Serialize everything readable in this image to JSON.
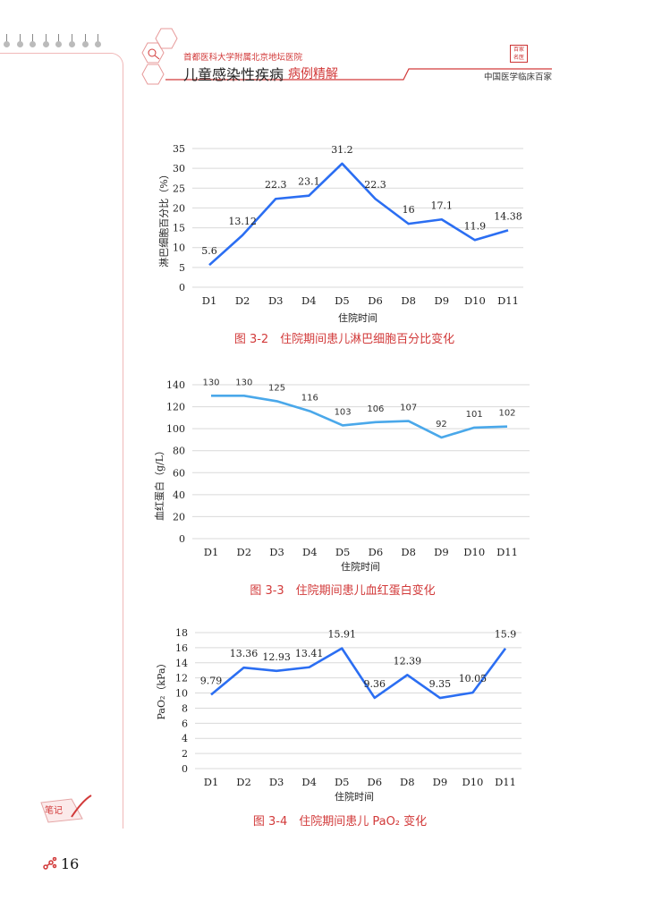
{
  "header": {
    "hospital": "首都医科大学附属北京地坛医院",
    "book_title": "儿童感染性疾病",
    "book_subtitle": "病例精解",
    "series": "中国医学临床百家",
    "seal_text": "百家名医",
    "notes_icon_text": "笔记"
  },
  "footer": {
    "page_number": "16"
  },
  "colors": {
    "accent": "#d23a3a",
    "line_dark": "#2b6ef2",
    "line_light": "#4aa8ea",
    "grid": "#d9d9d9"
  },
  "chart_data": [
    {
      "type": "line",
      "title": "图 3-2　住院期间患儿淋巴细胞百分比变化",
      "xlabel": "住院时间",
      "ylabel": "淋巴细胞百分比（%）",
      "categories": [
        "D1",
        "D2",
        "D3",
        "D4",
        "D5",
        "D6",
        "D8",
        "D9",
        "D10",
        "D11"
      ],
      "values": [
        5.6,
        13.12,
        22.3,
        23.1,
        31.2,
        22.3,
        16,
        17.1,
        11.9,
        14.38
      ],
      "labels": [
        "5.6",
        "13.12",
        "22.3",
        "23.1",
        "31.2",
        "22.3",
        "16",
        "17.1",
        "11.9",
        "14.38"
      ],
      "ylim": [
        0,
        35
      ],
      "yticks": [
        0,
        5,
        10,
        15,
        20,
        25,
        30,
        35
      ],
      "grid": true
    },
    {
      "type": "line",
      "title": "图 3-3　住院期间患儿血红蛋白变化",
      "xlabel": "住院时间",
      "ylabel": "血红蛋白（g/L）",
      "categories": [
        "D1",
        "D2",
        "D3",
        "D4",
        "D5",
        "D6",
        "D8",
        "D9",
        "D10",
        "D11"
      ],
      "values": [
        130,
        130,
        125,
        116,
        103,
        106,
        107,
        92,
        101,
        102
      ],
      "labels": [
        "130",
        "130",
        "125",
        "116",
        "103",
        "106",
        "107",
        "92",
        "101",
        "102"
      ],
      "ylim": [
        0,
        140
      ],
      "yticks": [
        0,
        20,
        40,
        60,
        80,
        100,
        120,
        140
      ],
      "grid": true
    },
    {
      "type": "line",
      "title": "图 3-4　住院期间患儿 PaO₂ 变化",
      "xlabel": "住院时间",
      "ylabel": "PaO₂（kPa）",
      "categories": [
        "D1",
        "D2",
        "D3",
        "D4",
        "D5",
        "D6",
        "D8",
        "D9",
        "D10",
        "D11"
      ],
      "values": [
        9.79,
        13.36,
        12.93,
        13.41,
        15.91,
        9.36,
        12.39,
        9.35,
        10.05,
        15.9
      ],
      "labels": [
        "9.79",
        "13.36",
        "12.93",
        "13.41",
        "15.91",
        "9.36",
        "12.39",
        "9.35",
        "10.05",
        "15.9"
      ],
      "ylim": [
        0,
        18
      ],
      "yticks": [
        0,
        2,
        4,
        6,
        8,
        10,
        12,
        14,
        16,
        18
      ],
      "grid": true
    }
  ]
}
